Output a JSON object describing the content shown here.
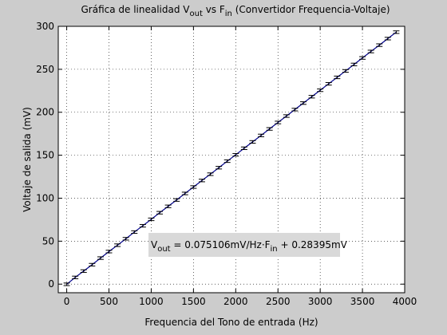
{
  "figure_background": "#cccccc",
  "chart_data": {
    "type": "line",
    "title": {
      "prefix": "Gráfica de linealidad V",
      "sub1": "out",
      "middle": " vs F",
      "sub2": "in",
      "suffix": " (Convertidor Frequencia-Voltaje)"
    },
    "xlabel": "Frequencia del Tono de entrada (Hz)",
    "ylabel": "Voltaje de salida (mV)",
    "xlim": [
      -100,
      4000
    ],
    "ylim": [
      -10,
      300
    ],
    "xticks": [
      0,
      500,
      1000,
      1500,
      2000,
      2500,
      3000,
      3500,
      4000
    ],
    "yticks": [
      0,
      50,
      100,
      150,
      200,
      250,
      300
    ],
    "grid": true,
    "grid_style": "dotted",
    "line_color": "#00008b",
    "errorbar_color": "#000000",
    "errorbar_halfwidth_mV": 1.5,
    "fit": {
      "slope": 0.075106,
      "intercept": 0.28395
    },
    "x": [
      0,
      100,
      200,
      300,
      400,
      500,
      600,
      700,
      800,
      900,
      1000,
      1100,
      1200,
      1300,
      1400,
      1500,
      1600,
      1700,
      1800,
      1900,
      2000,
      2100,
      2200,
      2300,
      2400,
      2500,
      2600,
      2700,
      2800,
      2900,
      3000,
      3100,
      3200,
      3300,
      3400,
      3500,
      3600,
      3700,
      3800,
      3900
    ],
    "values": [
      -0.2,
      7.8,
      15.2,
      22.6,
      30.3,
      37.9,
      45.3,
      52.8,
      60.6,
      67.9,
      75.4,
      83.1,
      90.5,
      97.9,
      105.5,
      113.0,
      120.6,
      127.9,
      135.5,
      143.1,
      150.5,
      158.1,
      165.5,
      173.0,
      180.6,
      188.1,
      195.6,
      203.1,
      210.7,
      218.1,
      225.6,
      233.1,
      240.6,
      248.1,
      255.6,
      263.2,
      270.7,
      278.1,
      285.7,
      293.2
    ],
    "annotation": {
      "v_main": "V",
      "v_sub": "out",
      "eq_mid": " = 0.075106mV/Hz·F",
      "f_sub": "in",
      "eq_end": " + 0.28395mV",
      "background": "#d9d9d9"
    }
  }
}
